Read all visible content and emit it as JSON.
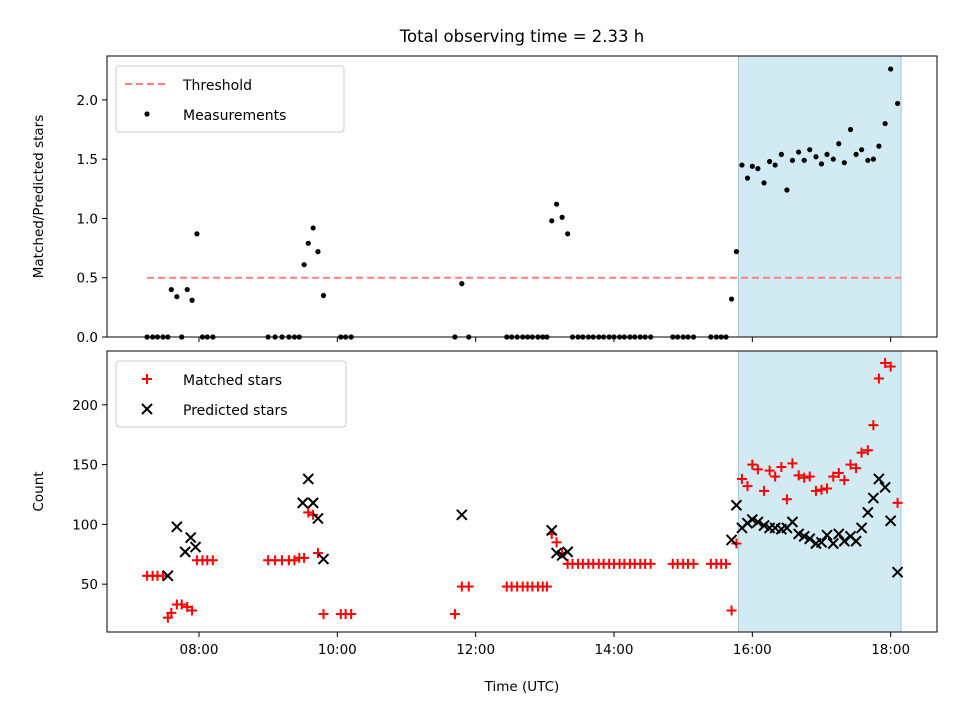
{
  "chart_data": [
    {
      "type": "scatter",
      "title": "Total observing time = 2.33 h",
      "xlabel": "",
      "ylabel": "Matched/Predicted stars",
      "xlim": [
        6.67,
        18.67
      ],
      "ylim": [
        0,
        2.37
      ],
      "yticks": [
        0.0,
        0.5,
        1.0,
        1.5,
        2.0
      ],
      "ytick_labels": [
        "0.0",
        "0.5",
        "1.0",
        "1.5",
        "2.0"
      ],
      "xticks": [
        8,
        10,
        12,
        14,
        16,
        18
      ],
      "legend_position": "top-left",
      "legend": [
        "Threshold",
        "Measurements"
      ],
      "highlight_band": {
        "x": [
          15.8,
          18.15
        ],
        "color": "#add8e6"
      },
      "threshold": {
        "name": "Threshold",
        "y": 0.5,
        "x": [
          7.25,
          18.15
        ],
        "color": "#ff7f7f"
      },
      "series": [
        {
          "name": "Measurements",
          "color": "#000000",
          "points": [
            [
              7.25,
              0
            ],
            [
              7.33,
              0
            ],
            [
              7.4,
              0
            ],
            [
              7.48,
              0
            ],
            [
              7.55,
              0
            ],
            [
              7.6,
              0.4
            ],
            [
              7.68,
              0.34
            ],
            [
              7.75,
              0
            ],
            [
              7.83,
              0.4
            ],
            [
              7.9,
              0.31
            ],
            [
              7.97,
              0.87
            ],
            [
              8.05,
              0
            ],
            [
              8.12,
              0
            ],
            [
              8.2,
              0
            ],
            [
              9.0,
              0
            ],
            [
              9.1,
              0
            ],
            [
              9.2,
              0
            ],
            [
              9.3,
              0
            ],
            [
              9.38,
              0
            ],
            [
              9.45,
              0
            ],
            [
              9.52,
              0.61
            ],
            [
              9.58,
              0.79
            ],
            [
              9.65,
              0.92
            ],
            [
              9.72,
              0.72
            ],
            [
              9.8,
              0.35
            ],
            [
              10.05,
              0
            ],
            [
              10.12,
              0
            ],
            [
              10.2,
              0
            ],
            [
              11.7,
              0
            ],
            [
              11.8,
              0.45
            ],
            [
              11.9,
              0
            ],
            [
              12.45,
              0
            ],
            [
              12.52,
              0
            ],
            [
              12.6,
              0
            ],
            [
              12.68,
              0
            ],
            [
              12.75,
              0
            ],
            [
              12.82,
              0
            ],
            [
              12.9,
              0
            ],
            [
              12.97,
              0
            ],
            [
              13.03,
              0
            ],
            [
              13.1,
              0.98
            ],
            [
              13.17,
              1.12
            ],
            [
              13.25,
              1.01
            ],
            [
              13.33,
              0.87
            ],
            [
              13.4,
              0
            ],
            [
              13.48,
              0
            ],
            [
              13.55,
              0
            ],
            [
              13.63,
              0
            ],
            [
              13.7,
              0
            ],
            [
              13.78,
              0
            ],
            [
              13.85,
              0
            ],
            [
              13.93,
              0
            ],
            [
              14.0,
              0
            ],
            [
              14.08,
              0
            ],
            [
              14.15,
              0
            ],
            [
              14.23,
              0
            ],
            [
              14.3,
              0
            ],
            [
              14.38,
              0
            ],
            [
              14.45,
              0
            ],
            [
              14.53,
              0
            ],
            [
              14.85,
              0
            ],
            [
              14.92,
              0
            ],
            [
              15.0,
              0
            ],
            [
              15.07,
              0
            ],
            [
              15.15,
              0
            ],
            [
              15.4,
              0
            ],
            [
              15.48,
              0
            ],
            [
              15.55,
              0
            ],
            [
              15.62,
              0
            ],
            [
              15.7,
              0.32
            ],
            [
              15.77,
              0.72
            ],
            [
              15.85,
              1.45
            ],
            [
              15.93,
              1.34
            ],
            [
              16.0,
              1.44
            ],
            [
              16.08,
              1.42
            ],
            [
              16.17,
              1.3
            ],
            [
              16.25,
              1.48
            ],
            [
              16.33,
              1.45
            ],
            [
              16.42,
              1.54
            ],
            [
              16.5,
              1.24
            ],
            [
              16.58,
              1.49
            ],
            [
              16.67,
              1.56
            ],
            [
              16.75,
              1.49
            ],
            [
              16.83,
              1.58
            ],
            [
              16.92,
              1.52
            ],
            [
              17.0,
              1.46
            ],
            [
              17.08,
              1.54
            ],
            [
              17.17,
              1.5
            ],
            [
              17.25,
              1.63
            ],
            [
              17.33,
              1.47
            ],
            [
              17.42,
              1.75
            ],
            [
              17.5,
              1.54
            ],
            [
              17.58,
              1.58
            ],
            [
              17.67,
              1.49
            ],
            [
              17.75,
              1.5
            ],
            [
              17.83,
              1.61
            ],
            [
              17.92,
              1.8
            ],
            [
              18.0,
              2.26
            ],
            [
              18.1,
              1.97
            ]
          ]
        }
      ]
    },
    {
      "type": "scatter",
      "title": "",
      "xlabel": "Time (UTC)",
      "ylabel": "Count",
      "xlim": [
        6.67,
        18.67
      ],
      "ylim": [
        10,
        245
      ],
      "yticks": [
        50,
        100,
        150,
        200
      ],
      "ytick_labels": [
        "50",
        "100",
        "150",
        "200"
      ],
      "xticks": [
        8,
        10,
        12,
        14,
        16,
        18
      ],
      "xtick_labels": [
        "08:00",
        "10:00",
        "12:00",
        "14:00",
        "16:00",
        "18:00"
      ],
      "legend_position": "top-left",
      "legend": [
        "Matched stars",
        "Predicted stars"
      ],
      "highlight_band": {
        "x": [
          15.8,
          18.15
        ],
        "color": "#add8e6"
      },
      "series": [
        {
          "name": "Matched stars",
          "marker": "plus",
          "color": "#ff0000",
          "points": [
            [
              7.25,
              57
            ],
            [
              7.33,
              57
            ],
            [
              7.4,
              57
            ],
            [
              7.48,
              57
            ],
            [
              7.55,
              22
            ],
            [
              7.6,
              26
            ],
            [
              7.68,
              33
            ],
            [
              7.75,
              33
            ],
            [
              7.83,
              31
            ],
            [
              7.9,
              28
            ],
            [
              7.97,
              70
            ],
            [
              8.05,
              70
            ],
            [
              8.12,
              70
            ],
            [
              8.2,
              70
            ],
            [
              9.0,
              70
            ],
            [
              9.1,
              70
            ],
            [
              9.2,
              70
            ],
            [
              9.3,
              70
            ],
            [
              9.38,
              70
            ],
            [
              9.45,
              72
            ],
            [
              9.52,
              72
            ],
            [
              9.58,
              110
            ],
            [
              9.65,
              108
            ],
            [
              9.72,
              76
            ],
            [
              9.8,
              25
            ],
            [
              10.05,
              25
            ],
            [
              10.12,
              25
            ],
            [
              10.2,
              25
            ],
            [
              11.7,
              25
            ],
            [
              11.8,
              48
            ],
            [
              11.9,
              48
            ],
            [
              12.45,
              48
            ],
            [
              12.52,
              48
            ],
            [
              12.6,
              48
            ],
            [
              12.68,
              48
            ],
            [
              12.75,
              48
            ],
            [
              12.82,
              48
            ],
            [
              12.9,
              48
            ],
            [
              12.97,
              48
            ],
            [
              13.03,
              48
            ],
            [
              13.1,
              92
            ],
            [
              13.17,
              85
            ],
            [
              13.25,
              76
            ],
            [
              13.33,
              67
            ],
            [
              13.4,
              67
            ],
            [
              13.48,
              67
            ],
            [
              13.55,
              67
            ],
            [
              13.63,
              67
            ],
            [
              13.7,
              67
            ],
            [
              13.78,
              67
            ],
            [
              13.85,
              67
            ],
            [
              13.93,
              67
            ],
            [
              14.0,
              67
            ],
            [
              14.08,
              67
            ],
            [
              14.15,
              67
            ],
            [
              14.23,
              67
            ],
            [
              14.3,
              67
            ],
            [
              14.38,
              67
            ],
            [
              14.45,
              67
            ],
            [
              14.53,
              67
            ],
            [
              14.85,
              67
            ],
            [
              14.92,
              67
            ],
            [
              15.0,
              67
            ],
            [
              15.07,
              67
            ],
            [
              15.15,
              67
            ],
            [
              15.4,
              67
            ],
            [
              15.48,
              67
            ],
            [
              15.55,
              67
            ],
            [
              15.62,
              67
            ],
            [
              15.7,
              28
            ],
            [
              15.77,
              84
            ],
            [
              15.85,
              138
            ],
            [
              15.93,
              132
            ],
            [
              16.0,
              150
            ],
            [
              16.08,
              146
            ],
            [
              16.17,
              128
            ],
            [
              16.25,
              145
            ],
            [
              16.33,
              140
            ],
            [
              16.42,
              148
            ],
            [
              16.5,
              121
            ],
            [
              16.58,
              151
            ],
            [
              16.67,
              141
            ],
            [
              16.75,
              139
            ],
            [
              16.83,
              140
            ],
            [
              16.92,
              128
            ],
            [
              17.0,
              129
            ],
            [
              17.08,
              130
            ],
            [
              17.17,
              140
            ],
            [
              17.25,
              143
            ],
            [
              17.33,
              137
            ],
            [
              17.42,
              150
            ],
            [
              17.5,
              147
            ],
            [
              17.58,
              160
            ],
            [
              17.67,
              162
            ],
            [
              17.75,
              183
            ],
            [
              17.83,
              222
            ],
            [
              17.92,
              235
            ],
            [
              18.0,
              232
            ],
            [
              18.1,
              118
            ]
          ]
        },
        {
          "name": "Predicted stars",
          "marker": "x",
          "color": "#000000",
          "points": [
            [
              7.55,
              57
            ],
            [
              7.68,
              98
            ],
            [
              7.8,
              77
            ],
            [
              7.88,
              89
            ],
            [
              7.95,
              81
            ],
            [
              9.5,
              118
            ],
            [
              9.58,
              138
            ],
            [
              9.65,
              118
            ],
            [
              9.72,
              105
            ],
            [
              9.8,
              71
            ],
            [
              11.8,
              108
            ],
            [
              13.1,
              95
            ],
            [
              13.17,
              76
            ],
            [
              13.25,
              74
            ],
            [
              13.33,
              77
            ],
            [
              15.7,
              87
            ],
            [
              15.77,
              116
            ],
            [
              15.85,
              97
            ],
            [
              15.93,
              101
            ],
            [
              16.0,
              104
            ],
            [
              16.08,
              102
            ],
            [
              16.17,
              99
            ],
            [
              16.25,
              97
            ],
            [
              16.33,
              97
            ],
            [
              16.42,
              96
            ],
            [
              16.5,
              97
            ],
            [
              16.58,
              102
            ],
            [
              16.67,
              92
            ],
            [
              16.75,
              90
            ],
            [
              16.83,
              88
            ],
            [
              16.92,
              84
            ],
            [
              17.0,
              85
            ],
            [
              17.08,
              91
            ],
            [
              17.17,
              84
            ],
            [
              17.25,
              92
            ],
            [
              17.33,
              86
            ],
            [
              17.42,
              90
            ],
            [
              17.5,
              86
            ],
            [
              17.58,
              97
            ],
            [
              17.67,
              110
            ],
            [
              17.75,
              122
            ],
            [
              17.83,
              138
            ],
            [
              17.92,
              131
            ],
            [
              18.0,
              103
            ],
            [
              18.1,
              60
            ]
          ]
        }
      ]
    }
  ]
}
